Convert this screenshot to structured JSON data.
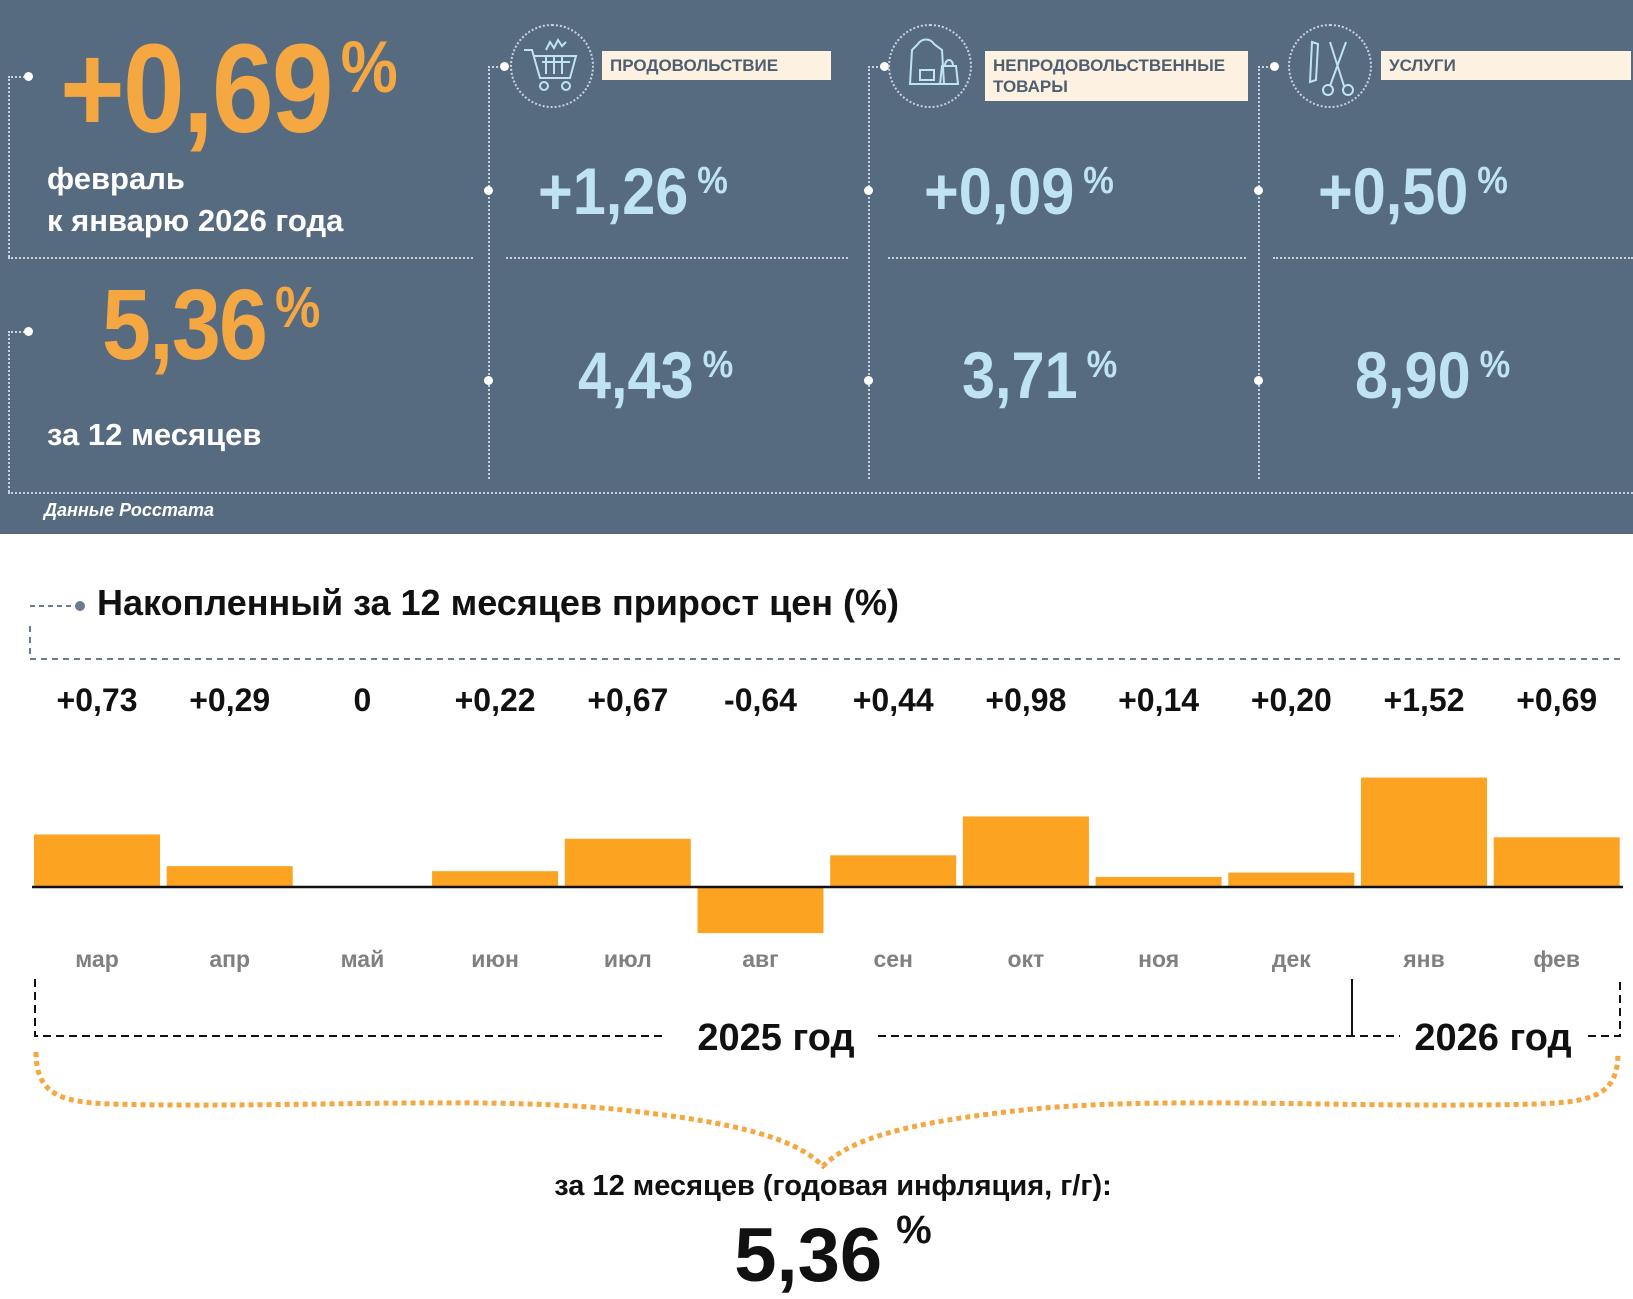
{
  "header": {
    "monthly": {
      "value": "+0,69",
      "unit": "%",
      "line1": "февраль",
      "line2": "к январю 2026 года"
    },
    "annual": {
      "value": "5,36",
      "unit": "%",
      "caption": "за 12 месяцев"
    },
    "source": "Данные Росстата",
    "categories": [
      {
        "icon": "shopping-cart-icon",
        "label": "ПРОДОВОЛЬСТВИЕ",
        "monthly": "+1,26",
        "annual": "4,43",
        "unit": "%"
      },
      {
        "icon": "clothing-bag-icon",
        "label": "НЕПРОДОВОЛЬСТВЕННЫЕ ТОВАРЫ",
        "monthly": "+0,09",
        "annual": "3,71",
        "unit": "%"
      },
      {
        "icon": "comb-scissors-icon",
        "label": "УСЛУГИ",
        "monthly": "+0,50",
        "annual": "8,90",
        "unit": "%"
      }
    ],
    "colors": {
      "panel": "#576b80",
      "orange": "#f5a742",
      "light_blue": "#bfe3f3",
      "bar": "#fca321"
    }
  },
  "chart_data": {
    "type": "bar",
    "title": "Накопленный за 12 месяцев прирост цен (%)",
    "categories": [
      "мар",
      "апр",
      "май",
      "июн",
      "июл",
      "авг",
      "сен",
      "окт",
      "ноя",
      "дек",
      "янв",
      "фев"
    ],
    "values": [
      0.73,
      0.29,
      0,
      0.22,
      0.67,
      -0.64,
      0.44,
      0.98,
      0.14,
      0.2,
      1.52,
      0.69
    ],
    "data_labels": [
      "+0,73",
      "+0,29",
      "0",
      "+0,22",
      "+0,67",
      "-0,64",
      "+0,44",
      "+0,98",
      "+0,14",
      "+0,20",
      "+1,52",
      "+0,69"
    ],
    "year_groups": [
      "2025 год",
      "2026 год"
    ],
    "grid": false
  },
  "footer": {
    "caption": "за 12 месяцев (годовая инфляция, г/г):",
    "value": "5,36",
    "unit": "%"
  }
}
